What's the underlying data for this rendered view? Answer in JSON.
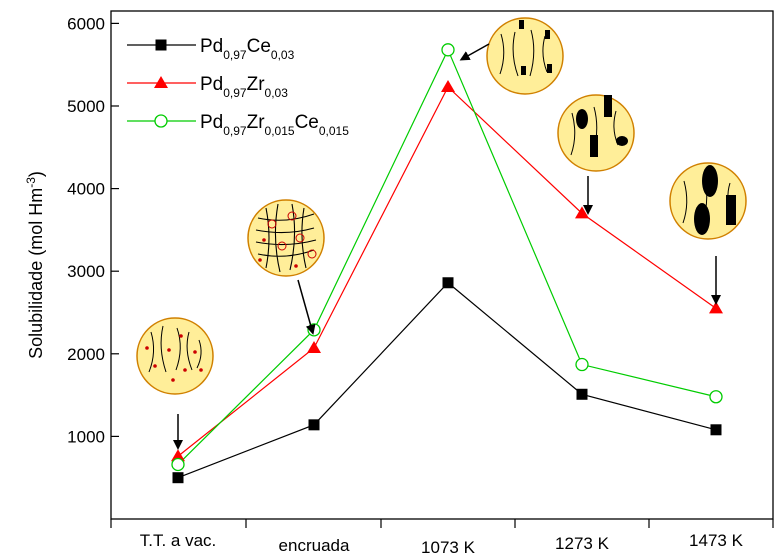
{
  "chart_data": {
    "type": "line",
    "categories": [
      "T.T. a vac.",
      "encruada",
      "1073 K",
      "1273 K",
      "1473 K"
    ],
    "ylabel": {
      "main": "Solubilidade (mol Hm",
      "sup": "-3",
      "end": ")"
    },
    "ylim": [
      0,
      6150
    ],
    "yticks": [
      1000,
      2000,
      3000,
      4000,
      5000,
      6000
    ],
    "grid": false,
    "legend_position": "top-left",
    "series": [
      {
        "name": "Pd0,97Ce0,03",
        "legend_parts": [
          [
            "Pd",
            ""
          ],
          [
            "0,97",
            "sub"
          ],
          [
            "Ce",
            ""
          ],
          [
            "0,03",
            "sub"
          ]
        ],
        "color": "#000000",
        "marker": "square",
        "values": [
          500,
          1140,
          2860,
          1510,
          1080
        ]
      },
      {
        "name": "Pd0,97Zr0,03",
        "legend_parts": [
          [
            "Pd",
            ""
          ],
          [
            "0,97",
            "sub"
          ],
          [
            "Zr",
            ""
          ],
          [
            "0,03",
            "sub"
          ]
        ],
        "color": "#ff0000",
        "marker": "triangle",
        "values": [
          760,
          2070,
          5230,
          3700,
          2550
        ]
      },
      {
        "name": "Pd0,97Zr0,015Ce0,015",
        "legend_parts": [
          [
            "Pd",
            ""
          ],
          [
            "0,97",
            "sub"
          ],
          [
            "Zr",
            ""
          ],
          [
            "0,015",
            "sub"
          ],
          [
            "Ce",
            ""
          ],
          [
            "0,015",
            "sub"
          ]
        ],
        "color": "#00cc00",
        "marker": "open-circle",
        "values": [
          660,
          2290,
          5680,
          1870,
          1480
        ]
      }
    ]
  },
  "colors": {
    "inset_fill": "#ffee99",
    "inset_stroke": "#d08000",
    "precipitate_dot": "#cc0000"
  },
  "icons": [
    "microstructure-inset-icon",
    "arrow-down-icon"
  ]
}
